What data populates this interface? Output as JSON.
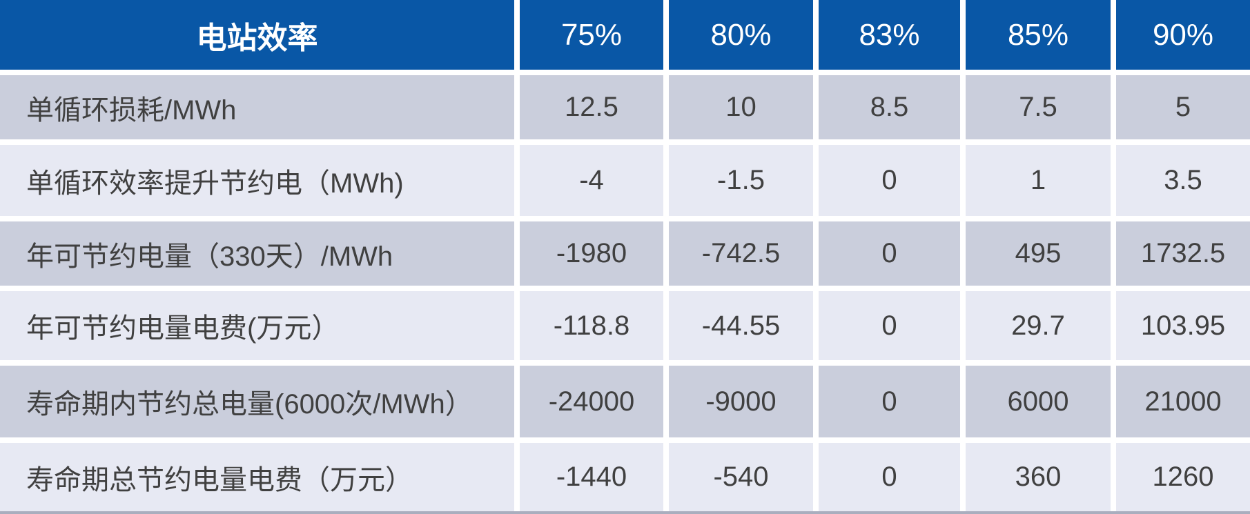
{
  "table": {
    "header": {
      "corner": "电站效率",
      "columns": [
        "75%",
        "80%",
        "83%",
        "85%",
        "90%"
      ]
    },
    "rows": [
      {
        "label": "单循环损耗/MWh",
        "values": [
          "12.5",
          "10",
          "8.5",
          "7.5",
          "5"
        ]
      },
      {
        "label": "单循环效率提升节约电（MWh)",
        "values": [
          "-4",
          "-1.5",
          "0",
          "1",
          "3.5"
        ]
      },
      {
        "label": "年可节约电量（330天）/MWh",
        "values": [
          "-1980",
          "-742.5",
          "0",
          "495",
          "1732.5"
        ]
      },
      {
        "label": "年可节约电量电费(万元）",
        "values": [
          "-118.8",
          "-44.55",
          "0",
          "29.7",
          "103.95"
        ]
      },
      {
        "label": "寿命期内节约总电量(6000次/MWh）",
        "values": [
          "-24000",
          "-9000",
          "0",
          "6000",
          "21000"
        ]
      },
      {
        "label": "寿命期总节约电量电费（万元）",
        "values": [
          "-1440",
          "-540",
          "0",
          "360",
          "1260"
        ]
      }
    ]
  },
  "colors": {
    "header_bg": "#0957A6",
    "header_text": "#FFFFFF",
    "row_odd_bg": "#CACEDC",
    "row_even_bg": "#E7E9F3",
    "body_text": "#404040",
    "gap_color": "#FFFFFF",
    "bottom_border": "#A9AEBE"
  },
  "chart_data": {
    "type": "table",
    "title": "电站效率",
    "categories": [
      "75%",
      "80%",
      "83%",
      "85%",
      "90%"
    ],
    "series": [
      {
        "name": "单循环损耗/MWh",
        "values": [
          12.5,
          10,
          8.5,
          7.5,
          5
        ]
      },
      {
        "name": "单循环效率提升节约电（MWh)",
        "values": [
          -4,
          -1.5,
          0,
          1,
          3.5
        ]
      },
      {
        "name": "年可节约电量（330天）/MWh",
        "values": [
          -1980,
          -742.5,
          0,
          495,
          1732.5
        ]
      },
      {
        "name": "年可节约电量电费(万元）",
        "values": [
          -118.8,
          -44.55,
          0,
          29.7,
          103.95
        ]
      },
      {
        "name": "寿命期内节约总电量(6000次/MWh）",
        "values": [
          -24000,
          -9000,
          0,
          6000,
          21000
        ]
      },
      {
        "name": "寿命期总节约电量电费（万元）",
        "values": [
          -1440,
          -540,
          0,
          360,
          1260
        ]
      }
    ],
    "layout": {
      "grid": false,
      "legend": "none",
      "first_column_is_row_labels": true
    }
  }
}
